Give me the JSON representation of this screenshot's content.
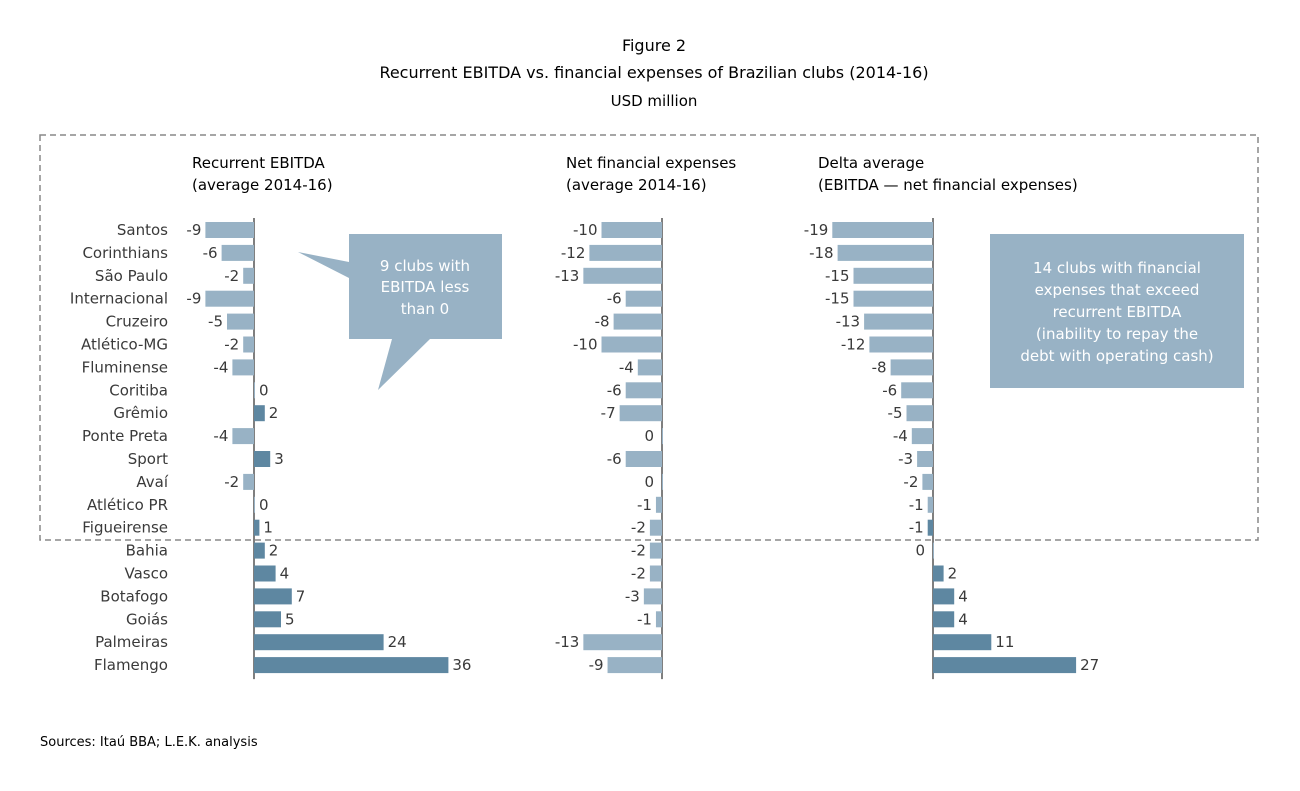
{
  "chart_data": {
    "type": "bar",
    "figure_label": "Figure 2",
    "title": "Recurrent EBITDA vs. financial expenses of Brazilian clubs (2014-16)",
    "subtitle": "USD million",
    "categories": [
      "Santos",
      "Corinthians",
      "São Paulo",
      "Internacional",
      "Cruzeiro",
      "Atlético-MG",
      "Fluminense",
      "Coritiba",
      "Grêmio",
      "Ponte Preta",
      "Sport",
      "Avaí",
      "Atlético PR",
      "Figueirense",
      "Bahia",
      "Vasco",
      "Botafogo",
      "Goiás",
      "Palmeiras",
      "Flamengo"
    ],
    "panels": [
      {
        "title_line1": "Recurrent EBITDA",
        "title_line2": "(average 2014-16)",
        "values": [
          -9,
          -6,
          -2,
          -9,
          -5,
          -2,
          -4,
          0,
          2,
          -4,
          3,
          -2,
          0,
          1,
          2,
          4,
          7,
          5,
          24,
          36
        ]
      },
      {
        "title_line1": "Net financial expenses",
        "title_line2": "(average 2014-16)",
        "values": [
          -10,
          -12,
          -13,
          -6,
          -8,
          -10,
          -4,
          -6,
          -7,
          0,
          -6,
          0,
          -1,
          -2,
          -2,
          -2,
          -3,
          -1,
          -13,
          -9
        ]
      },
      {
        "title_line1": "Delta average",
        "title_line2": "(EBITDA — net financial expenses)",
        "values": [
          -19,
          -18,
          -15,
          -15,
          -13,
          -12,
          -8,
          -6,
          -5,
          -4,
          -3,
          -2,
          -1,
          -1,
          0,
          2,
          4,
          4,
          11,
          27
        ],
        "highlighted_categories": [
          "Figueirense"
        ]
      }
    ],
    "annotations": [
      {
        "lines": [
          "9 clubs with",
          "EBITDA less",
          "than 0"
        ]
      },
      {
        "lines": [
          "14 clubs with financial",
          "expenses that exceed",
          "recurrent EBITDA",
          "(inability to repay the",
          "debt with operating cash)"
        ]
      }
    ],
    "colors": {
      "negative": "#98b2c5",
      "positive": "#5e87a1",
      "callout": "#98b2c5",
      "text": "#3a3a3a"
    },
    "grid": false,
    "source": "Sources: Itaú BBA; L.E.K. analysis"
  }
}
